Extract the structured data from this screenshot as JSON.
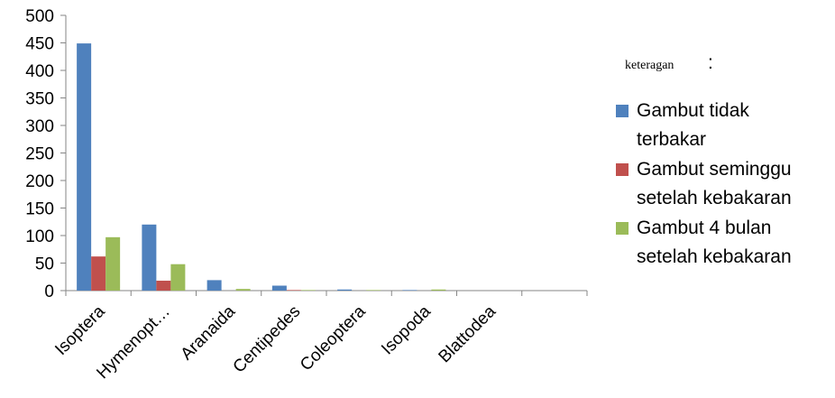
{
  "chart_data": {
    "type": "bar",
    "categories": [
      "Isoptera",
      "Hymenopt…",
      "Aranaida",
      "Centipedes",
      "Coleoptera",
      "Isopoda",
      "Blattodea",
      ""
    ],
    "series": [
      {
        "name": "Gambut tidak terbakar",
        "name_lines": [
          "Gambut tidak",
          "terbakar"
        ],
        "color": "#4F81BD",
        "values": [
          449,
          120,
          19,
          9,
          2,
          1,
          0,
          0
        ]
      },
      {
        "name": "Gambut seminggu setelah kebakaran",
        "name_lines": [
          "Gambut seminggu",
          "setelah kebakaran"
        ],
        "color": "#C0504D",
        "values": [
          62,
          18,
          0,
          1,
          0,
          0,
          0,
          0
        ]
      },
      {
        "name": "Gambut 4 bulan setelah kebakaran",
        "name_lines": [
          "Gambut 4 bulan",
          "setelah kebakaran"
        ],
        "color": "#9BBB59",
        "values": [
          97,
          48,
          3,
          1,
          1,
          2,
          0,
          0
        ]
      }
    ],
    "ylim": [
      0,
      500
    ],
    "yticks": [
      "0",
      "50",
      "100",
      "150",
      "200",
      "250",
      "300",
      "350",
      "400",
      "450",
      "500"
    ],
    "legend_title": "keteragan",
    "legend_colon": ":",
    "legend_position": "right",
    "grid": false
  }
}
